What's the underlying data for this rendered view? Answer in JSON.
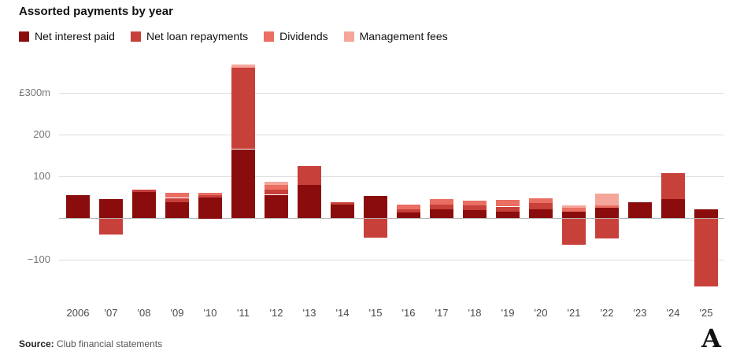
{
  "chart_data": {
    "type": "bar",
    "stacked": true,
    "title": "Assorted payments by year",
    "categories": [
      "2006",
      "'07",
      "'08",
      "'09",
      "'10",
      "'11",
      "'12",
      "'13",
      "'14",
      "'15",
      "'16",
      "'17",
      "'18",
      "'19",
      "'20",
      "'21",
      "'22",
      "'23",
      "'24",
      "'25"
    ],
    "series": [
      {
        "name": "Net interest paid",
        "color": "#8a0c0c",
        "values": [
          55,
          45,
          62,
          38,
          50,
          165,
          55,
          80,
          33,
          52,
          13,
          20,
          18,
          15,
          20,
          15,
          25,
          38,
          45,
          20
        ]
      },
      {
        "name": "Net loan repayments",
        "color": "#c8403a",
        "values": [
          0,
          -38,
          5,
          10,
          5,
          195,
          12,
          45,
          5,
          -45,
          8,
          12,
          12,
          12,
          15,
          -62,
          -48,
          0,
          62,
          -162
        ]
      },
      {
        "name": "Dividends",
        "color": "#ea6e62",
        "values": [
          0,
          0,
          0,
          12,
          5,
          0,
          12,
          0,
          0,
          0,
          12,
          13,
          12,
          16,
          12,
          10,
          5,
          0,
          0,
          0
        ]
      },
      {
        "name": "Management fees",
        "color": "#f4a69b",
        "values": [
          0,
          0,
          0,
          0,
          0,
          8,
          8,
          0,
          0,
          0,
          0,
          0,
          0,
          0,
          0,
          5,
          28,
          0,
          0,
          0
        ]
      }
    ],
    "yticks": [
      {
        "value": 300,
        "label": "£300m"
      },
      {
        "value": 200,
        "label": "200"
      },
      {
        "value": 100,
        "label": "100"
      },
      {
        "value": 0,
        "label": ""
      },
      {
        "value": -100,
        "label": "−100"
      }
    ],
    "ylim": [
      -180,
      380
    ],
    "unit": "£m",
    "grid": true,
    "legend_position": "top"
  },
  "source": {
    "prefix": "Source:",
    "text": "Club financial statements"
  },
  "logo": {
    "glyph": "A"
  }
}
